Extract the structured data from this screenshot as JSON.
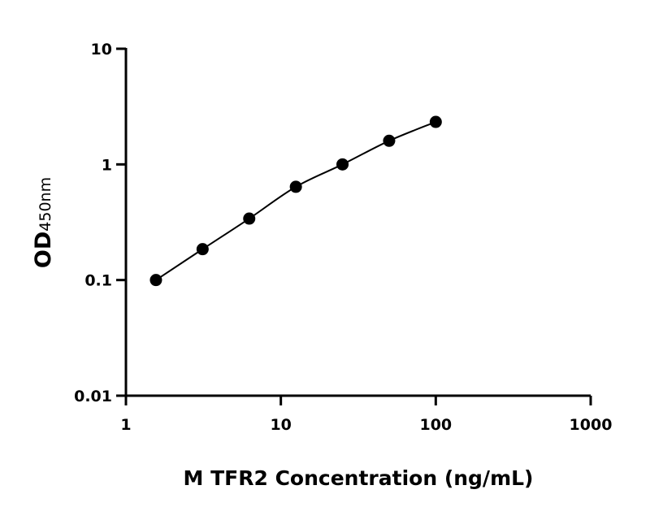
{
  "chart_data": {
    "type": "scatter",
    "title": "",
    "xlabel": "M TFR2 Concentration (ng/mL)",
    "ylabel_main": "OD",
    "ylabel_sub": "450nm",
    "x_scale": "log",
    "y_scale": "log",
    "xlim": [
      1,
      1000
    ],
    "ylim": [
      0.01,
      10
    ],
    "x_ticks": [
      "1",
      "10",
      "100",
      "1000"
    ],
    "x_tick_values": [
      1,
      10,
      100,
      1000
    ],
    "y_ticks": [
      "0.01",
      "0.1",
      "1",
      "10"
    ],
    "y_tick_values": [
      0.01,
      0.1,
      1,
      10
    ],
    "grid": false,
    "fit_curve": true,
    "marker_color": "#000000",
    "series": [
      {
        "x": [
          1.5625,
          3.125,
          6.25,
          12.5,
          25,
          50,
          100
        ],
        "y": [
          0.1,
          0.185,
          0.34,
          0.64,
          1.0,
          1.6,
          2.33
        ]
      }
    ]
  }
}
